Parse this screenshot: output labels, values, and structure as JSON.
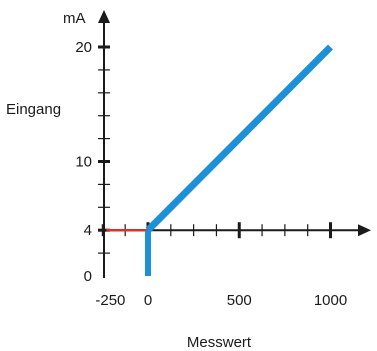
{
  "chart_data": {
    "type": "line",
    "xlabel": "Messwert",
    "ylabel": "Eingang",
    "yunit": "mA",
    "xlim": [
      -250,
      1000
    ],
    "ylim": [
      0,
      20
    ],
    "x_tick_labels": [
      {
        "value": -250,
        "label": "-250"
      },
      {
        "value": 0,
        "label": "0"
      },
      {
        "value": 500,
        "label": "500"
      },
      {
        "value": 1000,
        "label": "1000"
      }
    ],
    "y_tick_labels": [
      {
        "value": 0,
        "label": "0"
      },
      {
        "value": 4,
        "label": "4"
      },
      {
        "value": 10,
        "label": "10"
      },
      {
        "value": 20,
        "label": "20"
      }
    ],
    "x_minor_ticks": [
      -250,
      -125,
      125,
      250,
      375,
      625,
      750,
      875
    ],
    "x_major_ticks": [
      0,
      500,
      1000
    ],
    "y_minor_ticks": [
      2,
      6,
      8,
      12,
      14,
      16,
      18
    ],
    "y_major_ticks": [
      4,
      10,
      20
    ],
    "series": [
      {
        "x": [
          0,
          1000
        ],
        "y": [
          4,
          20
        ],
        "color": "#1e90d6"
      }
    ],
    "drop_segment": {
      "x": 0,
      "y": [
        4,
        0
      ],
      "color": "#1e90d6"
    },
    "reference_segment": {
      "x": [
        -250,
        0
      ],
      "y": 4,
      "color": "#d9322b"
    },
    "grid": false,
    "axis_color": "#1a1a1a"
  }
}
